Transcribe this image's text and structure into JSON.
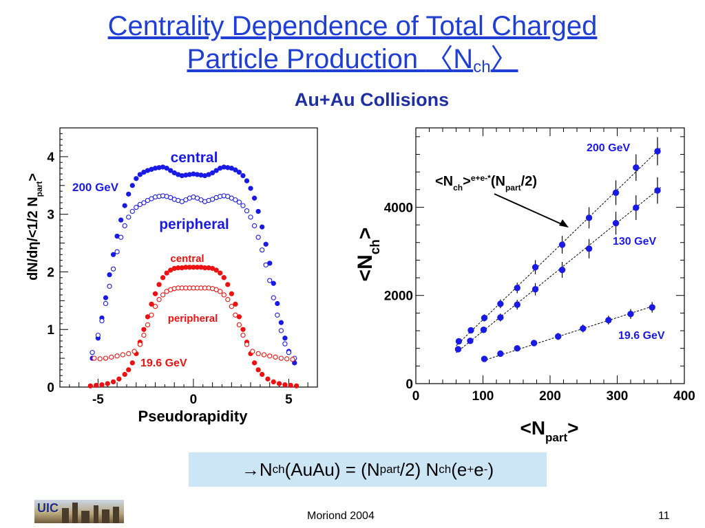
{
  "slide": {
    "title_line1": " Centrality Dependence of Total Charged",
    "title_line2_pre": "Particle Production ",
    "title_lang": "〈",
    "title_N": "N",
    "title_sub": "ch",
    "title_rang": "〉",
    "subtitle": "Au+Au Collisions",
    "footer_center": "Moriond 2004",
    "page_number": "11",
    "logo_text": "UIC",
    "colors": {
      "title": "#1f3fd4",
      "blue": "#1a1ae6",
      "red": "#ee1111",
      "box": "#cce6f6"
    }
  },
  "equation": {
    "arrow": "→",
    "p1": " N",
    "s1": "ch",
    "p2": "(AuAu) = (N",
    "s2": "part",
    "p3": "/2) N",
    "s3": "ch",
    "p4": "(e",
    "sup1": "+",
    "p5": "e",
    "sup2": "-",
    "p6": ")"
  },
  "chart_data": [
    {
      "type": "scatter",
      "xlabel": "Pseudorapidity",
      "ylabel": "dN/dη/<1/2 N_part>",
      "ylabel_parts": {
        "main": "dN/dη/<1/2 N",
        "sub": "part",
        "end": ">"
      },
      "xlim": [
        -7,
        6.5
      ],
      "ylim": [
        0,
        4.5
      ],
      "xticks": [
        -5,
        0,
        5
      ],
      "yticks": [
        0,
        1,
        2,
        3,
        4
      ],
      "labels": {
        "central_200": "central",
        "peripheral_200": "peripheral",
        "energy_200": "200 GeV",
        "central_19": "central",
        "peripheral_19": "peripheral",
        "energy_19": "19.6 GeV"
      },
      "series": [
        {
          "key": "central_200",
          "color": "#1a1ae6",
          "filled": true,
          "points": [
            [
              -5.3,
              0.5
            ],
            [
              -5.0,
              0.85
            ],
            [
              -4.8,
              1.2
            ],
            [
              -4.6,
              1.55
            ],
            [
              -4.4,
              1.95
            ],
            [
              -4.2,
              2.3
            ],
            [
              -4.0,
              2.62
            ],
            [
              -3.8,
              2.9
            ],
            [
              -3.6,
              3.15
            ],
            [
              -3.4,
              3.35
            ],
            [
              -3.2,
              3.5
            ],
            [
              -3.0,
              3.62
            ],
            [
              -2.8,
              3.69
            ],
            [
              -2.6,
              3.73
            ],
            [
              -2.4,
              3.76
            ],
            [
              -2.2,
              3.78
            ],
            [
              -2.0,
              3.8
            ],
            [
              -1.8,
              3.81
            ],
            [
              -1.6,
              3.82
            ],
            [
              -1.4,
              3.8
            ],
            [
              -1.2,
              3.76
            ],
            [
              -1.0,
              3.72
            ],
            [
              -0.8,
              3.69
            ],
            [
              -0.6,
              3.67
            ],
            [
              -0.4,
              3.68
            ],
            [
              -0.2,
              3.69
            ],
            [
              0.0,
              3.7
            ],
            [
              0.2,
              3.69
            ],
            [
              0.4,
              3.68
            ],
            [
              0.6,
              3.67
            ],
            [
              0.8,
              3.69
            ],
            [
              1.0,
              3.72
            ],
            [
              1.2,
              3.76
            ],
            [
              1.4,
              3.8
            ],
            [
              1.6,
              3.82
            ],
            [
              1.8,
              3.81
            ],
            [
              2.0,
              3.8
            ],
            [
              2.2,
              3.77
            ],
            [
              2.4,
              3.73
            ],
            [
              2.6,
              3.67
            ],
            [
              2.8,
              3.58
            ],
            [
              3.0,
              3.45
            ],
            [
              3.2,
              3.28
            ],
            [
              3.4,
              3.05
            ],
            [
              3.6,
              2.78
            ],
            [
              3.8,
              2.48
            ],
            [
              4.0,
              2.15
            ],
            [
              4.2,
              1.8
            ],
            [
              4.4,
              1.45
            ],
            [
              4.6,
              1.12
            ],
            [
              4.8,
              0.85
            ],
            [
              5.0,
              0.62
            ],
            [
              5.3,
              0.42
            ]
          ]
        },
        {
          "key": "peripheral_200",
          "color": "#1a1ae6",
          "filled": false,
          "points": [
            [
              -5.3,
              0.6
            ],
            [
              -5.0,
              0.9
            ],
            [
              -4.8,
              1.15
            ],
            [
              -4.6,
              1.45
            ],
            [
              -4.4,
              1.75
            ],
            [
              -4.2,
              2.05
            ],
            [
              -4.0,
              2.35
            ],
            [
              -3.8,
              2.6
            ],
            [
              -3.6,
              2.8
            ],
            [
              -3.4,
              2.95
            ],
            [
              -3.2,
              3.05
            ],
            [
              -3.0,
              3.12
            ],
            [
              -2.8,
              3.17
            ],
            [
              -2.6,
              3.2
            ],
            [
              -2.4,
              3.24
            ],
            [
              -2.2,
              3.27
            ],
            [
              -2.0,
              3.3
            ],
            [
              -1.8,
              3.31
            ],
            [
              -1.6,
              3.32
            ],
            [
              -1.4,
              3.31
            ],
            [
              -1.2,
              3.29
            ],
            [
              -1.0,
              3.26
            ],
            [
              -0.8,
              3.24
            ],
            [
              -0.6,
              3.22
            ],
            [
              -0.4,
              3.25
            ],
            [
              -0.2,
              3.28
            ],
            [
              0.0,
              3.3
            ],
            [
              0.2,
              3.28
            ],
            [
              0.4,
              3.25
            ],
            [
              0.6,
              3.22
            ],
            [
              0.8,
              3.24
            ],
            [
              1.0,
              3.26
            ],
            [
              1.2,
              3.29
            ],
            [
              1.4,
              3.31
            ],
            [
              1.6,
              3.32
            ],
            [
              1.8,
              3.31
            ],
            [
              2.0,
              3.28
            ],
            [
              2.2,
              3.25
            ],
            [
              2.4,
              3.21
            ],
            [
              2.6,
              3.15
            ],
            [
              2.8,
              3.06
            ],
            [
              3.0,
              2.95
            ],
            [
              3.2,
              2.8
            ],
            [
              3.4,
              2.6
            ],
            [
              3.6,
              2.38
            ],
            [
              3.8,
              2.12
            ],
            [
              4.0,
              1.85
            ],
            [
              4.2,
              1.55
            ],
            [
              4.4,
              1.25
            ],
            [
              4.6,
              0.98
            ],
            [
              4.8,
              0.75
            ],
            [
              5.0,
              0.6
            ],
            [
              5.3,
              0.5
            ]
          ]
        },
        {
          "key": "central_19",
          "color": "#ee1111",
          "filled": true,
          "points": [
            [
              -5.4,
              0.02
            ],
            [
              -5.1,
              0.03
            ],
            [
              -4.8,
              0.04
            ],
            [
              -4.5,
              0.06
            ],
            [
              -4.2,
              0.09
            ],
            [
              -3.9,
              0.14
            ],
            [
              -3.6,
              0.22
            ],
            [
              -3.4,
              0.3
            ],
            [
              -3.2,
              0.42
            ],
            [
              -3.0,
              0.58
            ],
            [
              -2.8,
              0.78
            ],
            [
              -2.6,
              1.0
            ],
            [
              -2.4,
              1.22
            ],
            [
              -2.2,
              1.44
            ],
            [
              -2.0,
              1.62
            ],
            [
              -1.8,
              1.78
            ],
            [
              -1.6,
              1.9
            ],
            [
              -1.4,
              1.98
            ],
            [
              -1.2,
              2.03
            ],
            [
              -1.0,
              2.06
            ],
            [
              -0.8,
              2.07
            ],
            [
              -0.6,
              2.07
            ],
            [
              -0.4,
              2.08
            ],
            [
              -0.2,
              2.08
            ],
            [
              0.0,
              2.08
            ],
            [
              0.2,
              2.08
            ],
            [
              0.4,
              2.08
            ],
            [
              0.6,
              2.07
            ],
            [
              0.8,
              2.07
            ],
            [
              1.0,
              2.06
            ],
            [
              1.2,
              2.03
            ],
            [
              1.4,
              1.98
            ],
            [
              1.6,
              1.9
            ],
            [
              1.8,
              1.78
            ],
            [
              2.0,
              1.62
            ],
            [
              2.2,
              1.44
            ],
            [
              2.4,
              1.22
            ],
            [
              2.6,
              1.0
            ],
            [
              2.8,
              0.78
            ],
            [
              3.0,
              0.58
            ],
            [
              3.2,
              0.42
            ],
            [
              3.4,
              0.3
            ],
            [
              3.6,
              0.22
            ],
            [
              3.9,
              0.14
            ],
            [
              4.2,
              0.09
            ],
            [
              4.5,
              0.06
            ],
            [
              4.8,
              0.04
            ],
            [
              5.1,
              0.03
            ],
            [
              5.4,
              0.02
            ]
          ]
        },
        {
          "key": "peripheral_19",
          "color": "#ee1111",
          "filled": false,
          "points": [
            [
              -5.2,
              0.5
            ],
            [
              -4.9,
              0.49
            ],
            [
              -4.6,
              0.5
            ],
            [
              -4.3,
              0.52
            ],
            [
              -4.0,
              0.54
            ],
            [
              -3.7,
              0.56
            ],
            [
              -3.4,
              0.58
            ],
            [
              -3.1,
              0.62
            ],
            [
              -2.8,
              0.74
            ],
            [
              -2.6,
              0.9
            ],
            [
              -2.4,
              1.08
            ],
            [
              -2.2,
              1.25
            ],
            [
              -2.0,
              1.4
            ],
            [
              -1.8,
              1.52
            ],
            [
              -1.6,
              1.6
            ],
            [
              -1.4,
              1.66
            ],
            [
              -1.2,
              1.69
            ],
            [
              -1.0,
              1.71
            ],
            [
              -0.8,
              1.72
            ],
            [
              -0.6,
              1.72
            ],
            [
              -0.4,
              1.72
            ],
            [
              -0.2,
              1.72
            ],
            [
              0.0,
              1.72
            ],
            [
              0.2,
              1.72
            ],
            [
              0.4,
              1.72
            ],
            [
              0.6,
              1.72
            ],
            [
              0.8,
              1.72
            ],
            [
              1.0,
              1.71
            ],
            [
              1.2,
              1.69
            ],
            [
              1.4,
              1.66
            ],
            [
              1.6,
              1.6
            ],
            [
              1.8,
              1.52
            ],
            [
              2.0,
              1.4
            ],
            [
              2.2,
              1.25
            ],
            [
              2.4,
              1.08
            ],
            [
              2.6,
              0.9
            ],
            [
              2.8,
              0.74
            ],
            [
              3.1,
              0.62
            ],
            [
              3.4,
              0.58
            ],
            [
              3.7,
              0.56
            ],
            [
              4.0,
              0.54
            ],
            [
              4.3,
              0.52
            ],
            [
              4.6,
              0.5
            ],
            [
              4.9,
              0.49
            ],
            [
              5.2,
              0.48
            ]
          ]
        }
      ]
    },
    {
      "type": "scatter",
      "xlabel_parts": {
        "main": "<N",
        "sub": "part",
        "end": ">"
      },
      "ylabel_parts": {
        "main": "<N",
        "sub": "ch",
        "end": ">"
      },
      "xlabel": "<N_part>",
      "ylabel": "<N_ch>",
      "xlim": [
        0,
        400
      ],
      "ylim": [
        0,
        5800
      ],
      "xticks": [
        0,
        100,
        200,
        300,
        400
      ],
      "yticks": [
        0,
        2000,
        4000
      ],
      "annotation": {
        "pre": "<N",
        "sub": "ch",
        "mid": ">",
        "sup": "e+e-*",
        "post": "(N",
        "sub2": "part",
        "end": "/2)"
      },
      "series": [
        {
          "name": "200 GeV",
          "color": "#1a1ae6",
          "points": [
            [
              64,
              960
            ],
            [
              82,
              1210
            ],
            [
              102,
              1490
            ],
            [
              126,
              1810
            ],
            [
              151,
              2170
            ],
            [
              178,
              2640
            ],
            [
              218,
              3150
            ],
            [
              258,
              3760
            ],
            [
              298,
              4330
            ],
            [
              328,
              4900
            ],
            [
              360,
              5270
            ]
          ],
          "errors": [
            40,
            60,
            80,
            100,
            120,
            160,
            200,
            240,
            280,
            300,
            320
          ],
          "fit": [
            [
              60,
              860
            ],
            [
              365,
              5350
            ]
          ]
        },
        {
          "name": "130 GeV",
          "color": "#1a1ae6",
          "points": [
            [
              63,
              780
            ],
            [
              81,
              970
            ],
            [
              101,
              1220
            ],
            [
              126,
              1500
            ],
            [
              151,
              1790
            ],
            [
              178,
              2140
            ],
            [
              218,
              2580
            ],
            [
              258,
              3060
            ],
            [
              298,
              3640
            ],
            [
              328,
              3990
            ],
            [
              360,
              4380
            ]
          ],
          "errors": [
            40,
            60,
            70,
            90,
            110,
            140,
            180,
            220,
            260,
            280,
            300
          ],
          "fit": [
            [
              60,
              700
            ],
            [
              365,
              4450
            ]
          ]
        },
        {
          "name": "19.6 GeV",
          "color": "#1a1ae6",
          "points": [
            [
              102,
              560
            ],
            [
              126,
              680
            ],
            [
              151,
              800
            ],
            [
              176,
              920
            ],
            [
              212,
              1070
            ],
            [
              249,
              1250
            ],
            [
              287,
              1440
            ],
            [
              320,
              1580
            ],
            [
              352,
              1730
            ]
          ],
          "errors": [
            40,
            50,
            60,
            70,
            80,
            90,
            100,
            110,
            120
          ],
          "fit": [
            [
              100,
              520
            ],
            [
              356,
              1770
            ]
          ]
        }
      ]
    }
  ]
}
